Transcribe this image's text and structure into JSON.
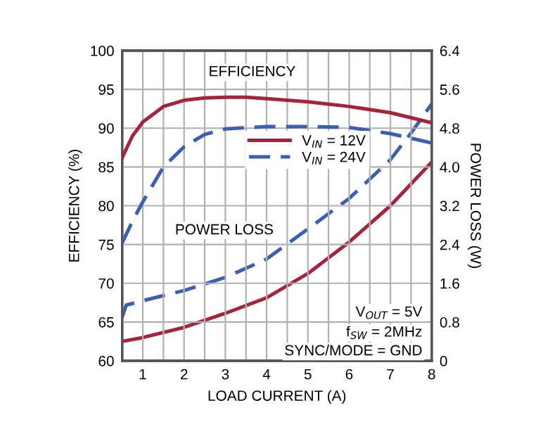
{
  "chart_data": {
    "type": "line",
    "xlabel": "LOAD CURRENT (A)",
    "ylabel": "EFFICIENCY (%)",
    "y2label": "POWER LOSS (W)",
    "xlim": [
      0.5,
      8
    ],
    "xticks": [
      1,
      2,
      3,
      4,
      5,
      6,
      7,
      8
    ],
    "ylim": [
      60,
      100
    ],
    "yticks": [
      60,
      65,
      70,
      75,
      80,
      85,
      90,
      95,
      100
    ],
    "y2lim": [
      0,
      6.4
    ],
    "y2ticks": [
      0,
      0.8,
      1.6,
      2.4,
      3.2,
      {
        "value": 4,
        "label": "4.0"
      },
      4.8,
      5.6,
      6.4
    ],
    "grid": true,
    "legend": "right",
    "marker": "none",
    "annotations": [
      "EFFICIENCY",
      "POWER LOSS",
      "V$_{OUT}$ = 5V",
      "f$_{SW}$ = 2MHz",
      "SYNC/MODE = GND"
    ],
    "series": [
      {
        "name": "V$_{IN}$ = 12V",
        "color": "#a4243b",
        "line_style": "solid",
        "x": [
          0.5,
          0.75,
          1,
          1.5,
          2,
          2.5,
          3,
          3.5,
          4,
          5,
          6,
          7,
          8
        ],
        "values": [
          86.2,
          89,
          90.8,
          92.8,
          93.6,
          93.9,
          94,
          94,
          93.8,
          93.4,
          92.8,
          92.0,
          90.7
        ]
      },
      {
        "name": "V$_{IN}$ = 24V",
        "color": "#3d5fb0",
        "line_style": "dashed",
        "x": [
          0.5,
          0.75,
          1,
          1.5,
          2,
          2.5,
          3,
          4,
          5,
          6,
          7,
          8
        ],
        "values": [
          75.2,
          78,
          80.5,
          85,
          87.6,
          89.2,
          89.9,
          90.2,
          90.2,
          90.1,
          89.3,
          88.1
        ]
      },
      {
        "color": "#a4243b",
        "line_style": "solid",
        "axis": "y2",
        "x": [
          0.5,
          1,
          2,
          3,
          4,
          5,
          6,
          7,
          8
        ],
        "values": [
          0.4,
          0.48,
          0.69,
          0.98,
          1.3,
          1.8,
          2.45,
          3.2,
          4.1
        ]
      },
      {
        "color": "#3d5fb0",
        "line_style": "dashed",
        "axis": "y2",
        "x": [
          0.5,
          0.6,
          1,
          2,
          3,
          4,
          5,
          6,
          7,
          7.5,
          8
        ],
        "values": [
          0.9,
          1.15,
          1.24,
          1.45,
          1.72,
          2.1,
          2.72,
          3.35,
          4.15,
          4.7,
          5.3
        ]
      }
    ]
  }
}
